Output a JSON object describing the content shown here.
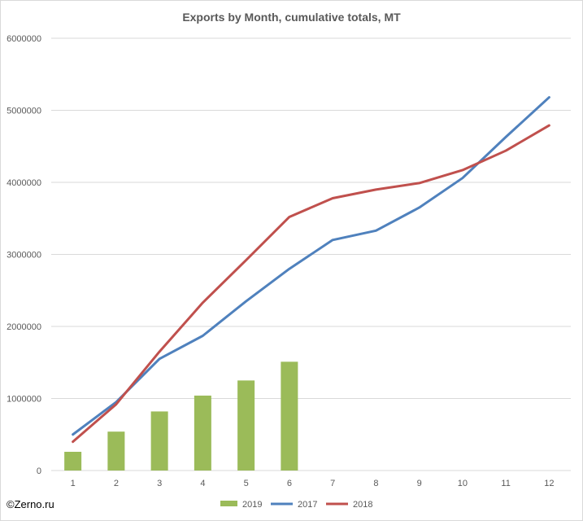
{
  "chart_data": {
    "type": "bar+line",
    "title": "Exports by Month, cumulative totals, MT",
    "categories": [
      "1",
      "2",
      "3",
      "4",
      "5",
      "6",
      "7",
      "8",
      "9",
      "10",
      "11",
      "12"
    ],
    "ylim": [
      0,
      6000000
    ],
    "yticks": [
      "0",
      "1000000",
      "2000000",
      "3000000",
      "4000000",
      "5000000",
      "6000000"
    ],
    "ytick_values": [
      0,
      1000000,
      2000000,
      3000000,
      4000000,
      5000000,
      6000000
    ],
    "grid": true,
    "legend_position": "bottom",
    "series": [
      {
        "name": "2019",
        "type": "bar",
        "color": "#9bbb59",
        "values": [
          260000,
          540000,
          820000,
          1040000,
          1250000,
          1510000,
          null,
          null,
          null,
          null,
          null,
          null
        ]
      },
      {
        "name": "2017",
        "type": "line",
        "color": "#4f81bd",
        "values": [
          500000,
          950000,
          1550000,
          1870000,
          2350000,
          2800000,
          3200000,
          3330000,
          3650000,
          4060000,
          4630000,
          5180000
        ]
      },
      {
        "name": "2018",
        "type": "line",
        "color": "#c0504d",
        "values": [
          400000,
          920000,
          1650000,
          2330000,
          2920000,
          3520000,
          3780000,
          3900000,
          3990000,
          4170000,
          4440000,
          4790000
        ]
      }
    ]
  },
  "credit": "©Zerno.ru"
}
